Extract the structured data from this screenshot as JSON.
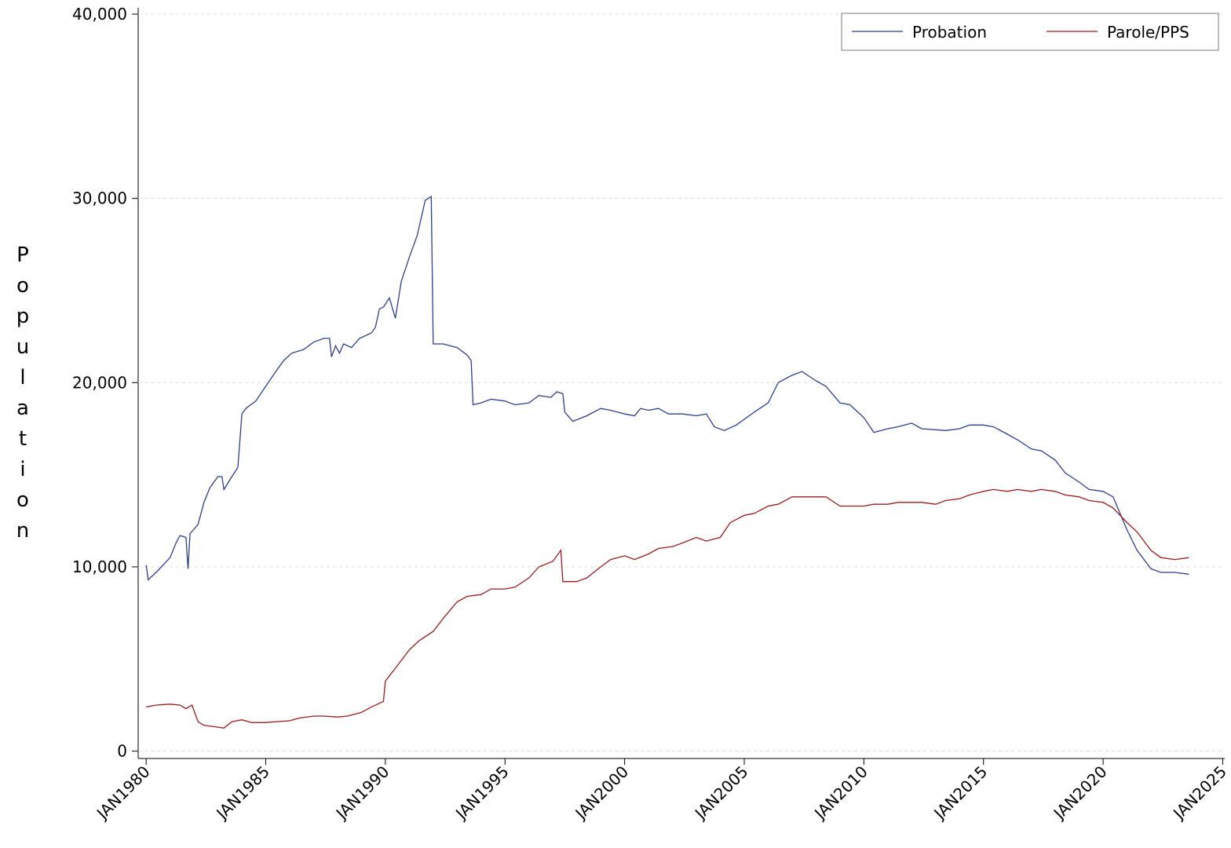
{
  "chart_data": {
    "type": "line",
    "y_label": "Population",
    "xlim": [
      "1979-09",
      "2025-02"
    ],
    "xticks": [
      {
        "value": "1980-01",
        "label": "JAN1980"
      },
      {
        "value": "1985-01",
        "label": "JAN1985"
      },
      {
        "value": "1990-01",
        "label": "JAN1990"
      },
      {
        "value": "1995-01",
        "label": "JAN1995"
      },
      {
        "value": "2000-01",
        "label": "JAN2000"
      },
      {
        "value": "2005-01",
        "label": "JAN2005"
      },
      {
        "value": "2010-01",
        "label": "JAN2010"
      },
      {
        "value": "2015-01",
        "label": "JAN2015"
      },
      {
        "value": "2020-01",
        "label": "JAN2020"
      },
      {
        "value": "2025-01",
        "label": "JAN2025"
      }
    ],
    "ylim": [
      -400,
      40000
    ],
    "yticks": [
      0,
      {
        "value": 10000,
        "label": "10,000"
      },
      {
        "value": 20000,
        "label": "20,000"
      },
      {
        "value": 30000,
        "label": "30,000"
      },
      {
        "value": 40000,
        "label": "40,000"
      }
    ],
    "grid": true,
    "legend_position": "top-right",
    "series": [
      {
        "name": "Probation",
        "color": "#2b3f8f",
        "x": [
          "1980-01",
          "1980-02",
          "1980-06",
          "1981-01",
          "1981-04",
          "1981-06",
          "1981-09",
          "1981-10",
          "1981-11",
          "1982-03",
          "1982-06",
          "1982-09",
          "1983-01",
          "1983-03",
          "1983-04",
          "1983-08",
          "1983-11",
          "1984-01",
          "1984-03",
          "1984-08",
          "1985-01",
          "1985-06",
          "1985-10",
          "1986-02",
          "1986-08",
          "1987-01",
          "1987-06",
          "1987-09",
          "1987-10",
          "1987-12",
          "1988-02",
          "1988-04",
          "1988-08",
          "1988-12",
          "1989-06",
          "1989-08",
          "1989-10",
          "1989-12",
          "1990-03",
          "1990-06",
          "1990-09",
          "1991-01",
          "1991-05",
          "1991-09",
          "1991-12",
          "1992-01",
          "1992-06",
          "1993-01",
          "1993-06",
          "1993-08",
          "1993-09",
          "1994-01",
          "1994-06",
          "1995-01",
          "1995-06",
          "1996-01",
          "1996-06",
          "1996-12",
          "1997-03",
          "1997-06",
          "1997-07",
          "1997-11",
          "1998-06",
          "1999-01",
          "1999-06",
          "2000-01",
          "2000-06",
          "2000-09",
          "2001-01",
          "2001-06",
          "2001-11",
          "2002-06",
          "2003-01",
          "2003-06",
          "2003-10",
          "2004-03",
          "2004-09",
          "2005-06",
          "2006-01",
          "2006-06",
          "2007-01",
          "2007-06",
          "2008-01",
          "2008-06",
          "2009-01",
          "2009-06",
          "2010-01",
          "2010-06",
          "2011-01",
          "2011-06",
          "2012-01",
          "2012-06",
          "2013-06",
          "2014-01",
          "2014-06",
          "2015-01",
          "2015-06",
          "2016-01",
          "2016-06",
          "2017-01",
          "2017-06",
          "2018-01",
          "2018-06",
          "2019-01",
          "2019-06",
          "2020-01",
          "2020-06",
          "2021-01",
          "2021-06",
          "2022-01",
          "2022-06",
          "2023-01",
          "2023-08"
        ],
        "values": [
          10100,
          9300,
          9700,
          10500,
          11300,
          11700,
          11600,
          9900,
          11800,
          12300,
          13500,
          14300,
          14900,
          14900,
          14200,
          14900,
          15400,
          18300,
          18600,
          19000,
          19800,
          20600,
          21200,
          21600,
          21800,
          22200,
          22400,
          22400,
          21400,
          22000,
          21600,
          22100,
          21900,
          22400,
          22700,
          23000,
          24000,
          24100,
          24600,
          23500,
          25500,
          26800,
          28000,
          29900,
          30100,
          22100,
          22100,
          21900,
          21500,
          21200,
          18800,
          18900,
          19100,
          19000,
          18800,
          18900,
          19300,
          19200,
          19500,
          19400,
          18400,
          17900,
          18200,
          18600,
          18500,
          18300,
          18200,
          18600,
          18500,
          18600,
          18300,
          18300,
          18200,
          18300,
          17600,
          17400,
          17700,
          18400,
          18900,
          20000,
          20400,
          20600,
          20100,
          19800,
          18900,
          18800,
          18100,
          17300,
          17500,
          17600,
          17800,
          17500,
          17400,
          17500,
          17700,
          17700,
          17600,
          17200,
          16900,
          16400,
          16300,
          15800,
          15100,
          14600,
          14200,
          14100,
          13800,
          12000,
          10900,
          9900,
          9700,
          9700,
          9600
        ]
      },
      {
        "name": "Parole/PPS",
        "color": "#9b1c1c",
        "x": [
          "1980-01",
          "1980-06",
          "1981-01",
          "1981-06",
          "1981-09",
          "1981-12",
          "1982-03",
          "1982-06",
          "1983-01",
          "1983-04",
          "1983-08",
          "1984-01",
          "1984-06",
          "1985-01",
          "1986-01",
          "1986-06",
          "1987-01",
          "1987-06",
          "1988-01",
          "1988-06",
          "1989-01",
          "1989-06",
          "1989-12",
          "1990-01",
          "1990-06",
          "1991-01",
          "1991-06",
          "1992-01",
          "1992-06",
          "1993-01",
          "1993-06",
          "1994-01",
          "1994-06",
          "1995-01",
          "1995-06",
          "1996-01",
          "1996-06",
          "1997-01",
          "1997-05",
          "1997-06",
          "1998-01",
          "1998-06",
          "1999-01",
          "1999-06",
          "2000-01",
          "2000-06",
          "2001-01",
          "2001-06",
          "2002-01",
          "2002-06",
          "2003-01",
          "2003-06",
          "2004-01",
          "2004-06",
          "2005-01",
          "2005-06",
          "2006-01",
          "2006-06",
          "2007-01",
          "2007-06",
          "2008-01",
          "2008-06",
          "2009-01",
          "2009-06",
          "2010-01",
          "2010-06",
          "2011-01",
          "2011-06",
          "2012-01",
          "2012-06",
          "2013-01",
          "2013-06",
          "2014-01",
          "2014-06",
          "2015-01",
          "2015-06",
          "2016-01",
          "2016-06",
          "2017-01",
          "2017-06",
          "2018-01",
          "2018-06",
          "2019-01",
          "2019-06",
          "2020-01",
          "2020-06",
          "2021-01",
          "2021-06",
          "2022-01",
          "2022-06",
          "2023-01",
          "2023-08"
        ],
        "values": [
          2400,
          2500,
          2550,
          2500,
          2300,
          2500,
          1600,
          1400,
          1300,
          1250,
          1600,
          1700,
          1550,
          1550,
          1650,
          1800,
          1900,
          1900,
          1850,
          1900,
          2100,
          2400,
          2700,
          3800,
          4500,
          5500,
          6000,
          6500,
          7200,
          8100,
          8400,
          8500,
          8800,
          8800,
          8900,
          9400,
          10000,
          10300,
          10900,
          9200,
          9200,
          9400,
          10000,
          10400,
          10600,
          10400,
          10700,
          11000,
          11100,
          11300,
          11600,
          11400,
          11600,
          12400,
          12800,
          12900,
          13300,
          13400,
          13800,
          13800,
          13800,
          13800,
          13300,
          13300,
          13300,
          13400,
          13400,
          13500,
          13500,
          13500,
          13400,
          13600,
          13700,
          13900,
          14100,
          14200,
          14100,
          14200,
          14100,
          14200,
          14100,
          13900,
          13800,
          13600,
          13500,
          13200,
          12400,
          11900,
          10900,
          10500,
          10400,
          10500
        ]
      }
    ]
  }
}
